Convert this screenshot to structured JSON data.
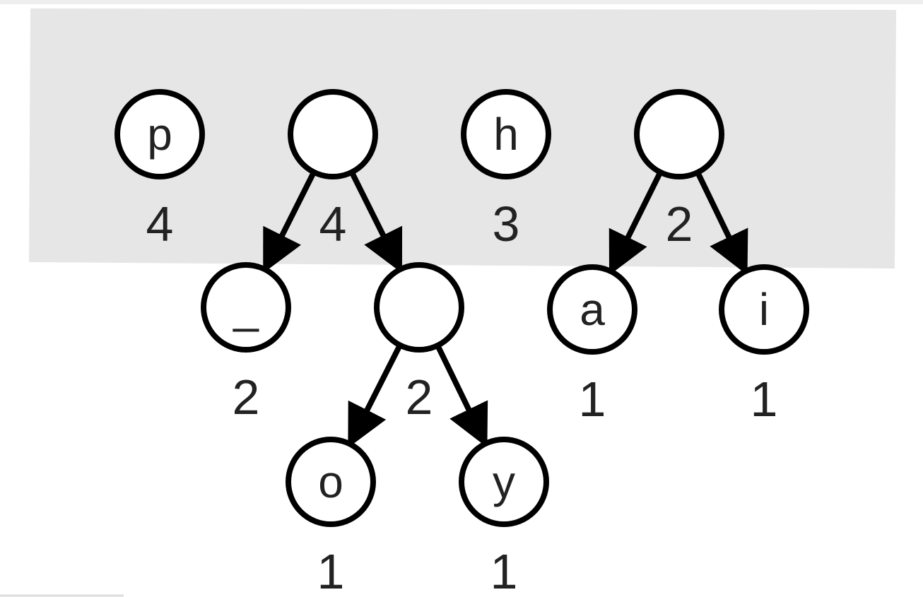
{
  "diagram": {
    "type": "huffman-forest",
    "colors": {
      "highlight_band": "#e6e6e6",
      "node_fill": "#ffffff",
      "stroke": "#000000",
      "text": "#222222"
    },
    "nodes": [
      {
        "id": "p",
        "symbol": "p",
        "weight": "4",
        "in_highlight": true
      },
      {
        "id": "t1",
        "symbol": "",
        "weight": "4",
        "in_highlight": true
      },
      {
        "id": "h",
        "symbol": "h",
        "weight": "3",
        "in_highlight": true
      },
      {
        "id": "t2",
        "symbol": "",
        "weight": "2",
        "in_highlight": true
      },
      {
        "id": "us",
        "symbol": "_",
        "weight": "2"
      },
      {
        "id": "t1r",
        "symbol": "",
        "weight": "2"
      },
      {
        "id": "a",
        "symbol": "a",
        "weight": "1"
      },
      {
        "id": "i",
        "symbol": "i",
        "weight": "1"
      },
      {
        "id": "o",
        "symbol": "o",
        "weight": "1"
      },
      {
        "id": "y",
        "symbol": "y",
        "weight": "1"
      }
    ],
    "edges": [
      {
        "from": "t1",
        "to": "us"
      },
      {
        "from": "t1",
        "to": "t1r"
      },
      {
        "from": "t1r",
        "to": "o"
      },
      {
        "from": "t1r",
        "to": "y"
      },
      {
        "from": "t2",
        "to": "a"
      },
      {
        "from": "t2",
        "to": "i"
      }
    ]
  }
}
